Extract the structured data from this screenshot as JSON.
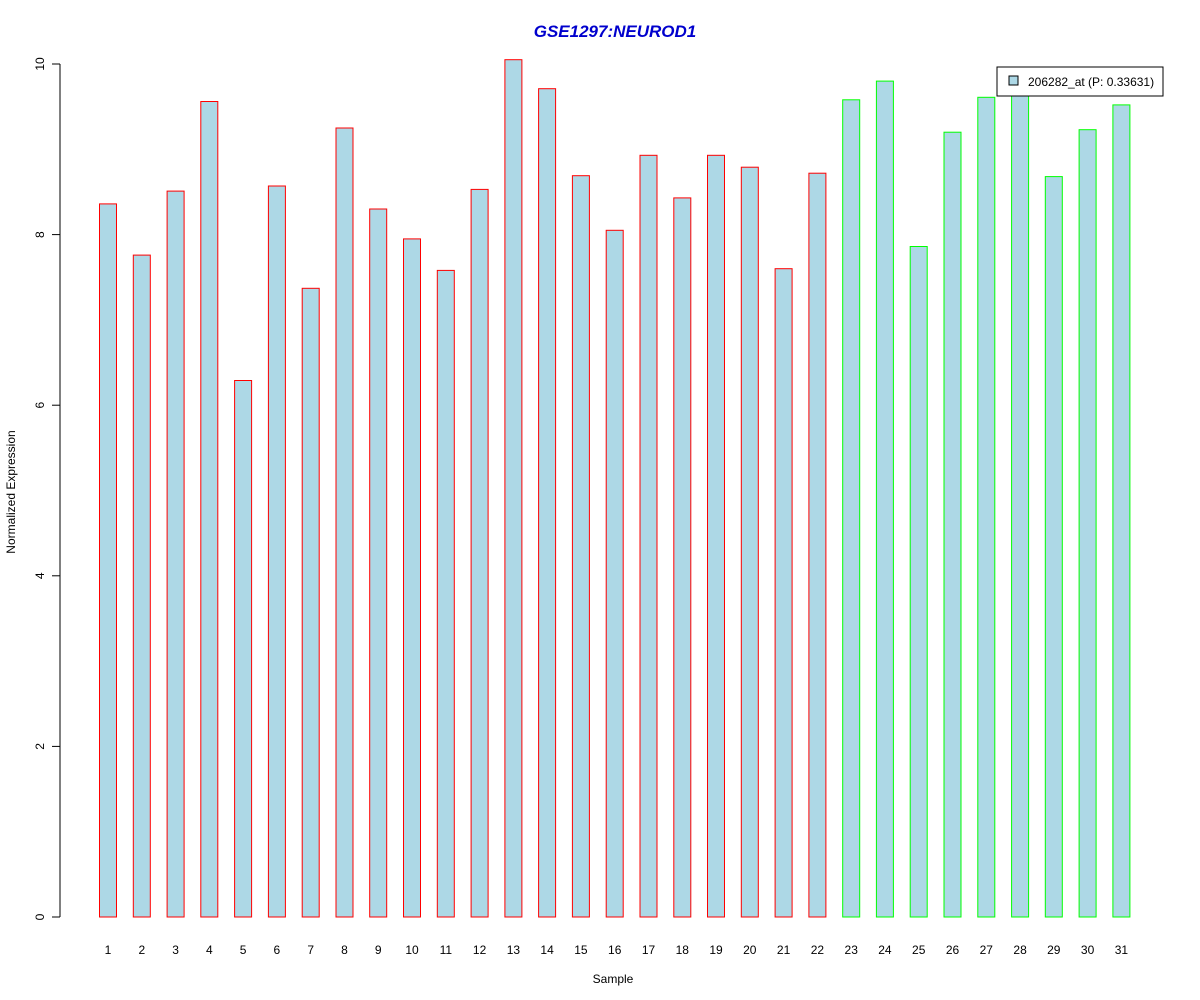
{
  "chart_data": {
    "type": "bar",
    "title": "GSE1297:NEUROD1",
    "xlabel": "Sample",
    "ylabel": "Normalized Expression",
    "ylim": [
      0,
      10
    ],
    "yticks": [
      "0",
      "2",
      "4",
      "6",
      "8",
      "10"
    ],
    "categories": [
      "1",
      "2",
      "3",
      "4",
      "5",
      "6",
      "7",
      "8",
      "9",
      "10",
      "11",
      "12",
      "13",
      "14",
      "15",
      "16",
      "17",
      "18",
      "19",
      "20",
      "21",
      "22",
      "23",
      "24",
      "25",
      "26",
      "27",
      "28",
      "29",
      "30",
      "31"
    ],
    "series": [
      {
        "name": "206282_at (P: 0.33631)",
        "values": [
          8.36,
          7.76,
          8.51,
          9.56,
          6.29,
          8.57,
          7.37,
          9.25,
          8.3,
          7.95,
          7.58,
          8.53,
          10.05,
          9.71,
          8.69,
          8.05,
          8.93,
          8.43,
          8.93,
          8.79,
          7.6,
          8.72,
          9.58,
          9.8,
          7.86,
          9.2,
          9.61,
          9.68,
          8.68,
          9.23,
          9.52
        ]
      }
    ],
    "bar_fill": "#add8e6",
    "groups": [
      {
        "samples": [
          1,
          22
        ],
        "border_color": "#ff0000"
      },
      {
        "samples": [
          23,
          31
        ],
        "border_color": "#00ff00"
      }
    ],
    "title_color": "#0000cd",
    "legend": {
      "label": "206282_at (P: 0.33631)",
      "position": "top-right"
    },
    "grid": false
  }
}
